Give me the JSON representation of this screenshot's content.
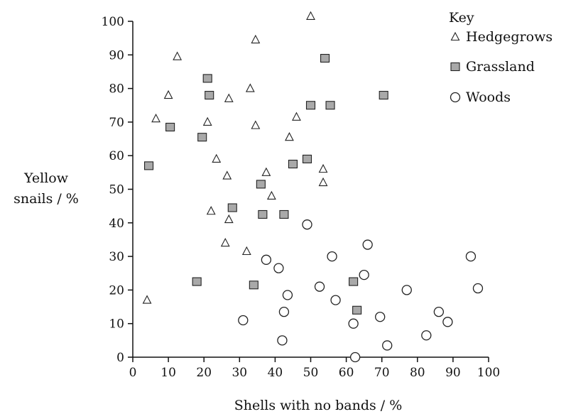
{
  "chart_data": {
    "type": "scatter",
    "xlabel": "Shells with no bands / %",
    "ylabel_lines": [
      "Yellow",
      "snails / %"
    ],
    "xlim": [
      0,
      100
    ],
    "ylim": [
      0,
      100
    ],
    "xticks": [
      0,
      10,
      20,
      30,
      40,
      50,
      60,
      70,
      80,
      90,
      100
    ],
    "yticks": [
      0,
      10,
      20,
      30,
      40,
      50,
      60,
      70,
      80,
      90,
      100
    ],
    "grid": false,
    "legend": {
      "title": "Key",
      "placement": "top-right"
    },
    "series": [
      {
        "name": "Hedgegrows",
        "marker": "triangle",
        "points": [
          [
            4,
            17
          ],
          [
            6.5,
            71
          ],
          [
            10,
            78
          ],
          [
            12.5,
            89.5
          ],
          [
            21,
            70
          ],
          [
            22,
            43.5
          ],
          [
            23.5,
            59
          ],
          [
            26,
            34
          ],
          [
            27,
            41
          ],
          [
            26.5,
            54
          ],
          [
            27,
            77
          ],
          [
            32,
            31.5
          ],
          [
            33,
            80
          ],
          [
            34.5,
            94.5
          ],
          [
            34.5,
            69
          ],
          [
            37.5,
            55
          ],
          [
            39,
            48
          ],
          [
            44,
            65.5
          ],
          [
            46,
            71.5
          ],
          [
            50,
            101.5
          ],
          [
            53.5,
            56
          ],
          [
            53.5,
            52
          ]
        ]
      },
      {
        "name": "Grassland",
        "marker": "square",
        "points": [
          [
            4.5,
            57
          ],
          [
            10.5,
            68.5
          ],
          [
            18,
            22.5
          ],
          [
            19.5,
            65.5
          ],
          [
            21,
            83
          ],
          [
            21.5,
            78
          ],
          [
            28,
            44.5
          ],
          [
            34,
            21.5
          ],
          [
            36,
            51.5
          ],
          [
            36.5,
            42.5
          ],
          [
            42.5,
            42.5
          ],
          [
            45,
            57.5
          ],
          [
            49,
            59
          ],
          [
            50,
            75
          ],
          [
            54,
            89
          ],
          [
            55.5,
            75
          ],
          [
            62,
            22.5
          ],
          [
            63,
            14
          ],
          [
            70.5,
            78
          ]
        ]
      },
      {
        "name": "Woods",
        "marker": "circle",
        "points": [
          [
            31,
            11
          ],
          [
            37.5,
            29
          ],
          [
            41,
            26.5
          ],
          [
            42,
            5
          ],
          [
            42.5,
            13.5
          ],
          [
            43.5,
            18.5
          ],
          [
            49,
            39.5
          ],
          [
            52.5,
            21
          ],
          [
            56,
            30
          ],
          [
            57,
            17
          ],
          [
            62,
            10
          ],
          [
            62.5,
            0
          ],
          [
            65,
            24.5
          ],
          [
            66,
            33.5
          ],
          [
            69.5,
            12
          ],
          [
            71.5,
            3.5
          ],
          [
            77,
            20
          ],
          [
            82.5,
            6.5
          ],
          [
            86,
            13.5
          ],
          [
            88.5,
            10.5
          ],
          [
            95,
            30
          ],
          [
            97,
            20.5
          ]
        ]
      }
    ]
  }
}
